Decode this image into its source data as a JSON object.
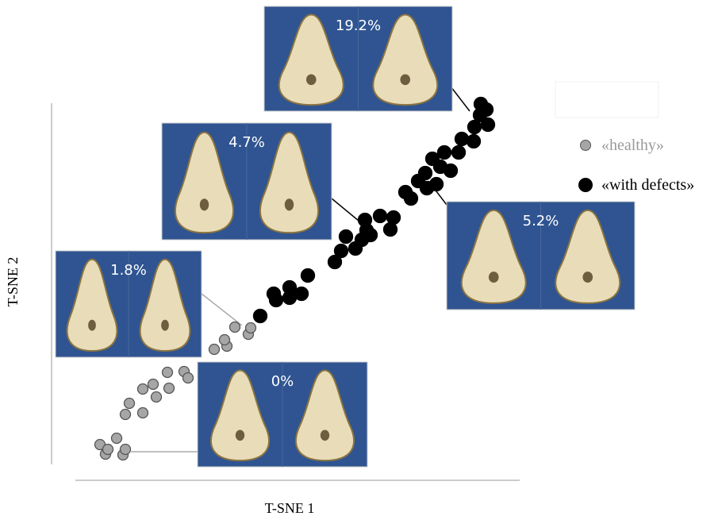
{
  "chart_data": {
    "type": "scatter",
    "x_label": "T-SNE 1",
    "y_label": "T-SNE 2",
    "xlim": [
      0,
      560
    ],
    "ylim": [
      0,
      475
    ],
    "legend": "right",
    "series": [
      {
        "name": "«healthy»",
        "color": "#a6a6a6",
        "x": [
          31,
          38,
          41,
          60,
          52,
          63,
          63,
          68,
          85,
          85,
          98,
          102,
          118,
          116,
          137,
          142,
          175,
          191,
          188,
          201,
          218,
          221
        ],
        "values": [
          45,
          33,
          39,
          32,
          53,
          39,
          83,
          97,
          85,
          115,
          121,
          105,
          116,
          136,
          137,
          129,
          165,
          169,
          177,
          193,
          184,
          192
        ]
      },
      {
        "name": "«with defects»",
        "color": "#000000",
        "x": [
          233,
          250,
          253,
          270,
          270,
          285,
          293,
          327,
          335,
          341,
          353,
          361,
          367,
          365,
          372,
          384,
          397,
          401,
          416,
          423,
          432,
          441,
          443,
          450,
          455,
          460,
          465,
          473,
          483,
          487,
          502,
          503,
          511,
          518,
          520,
          510
        ],
        "values": [
          207,
          235,
          227,
          243,
          230,
          235,
          258,
          275,
          289,
          307,
          292,
          303,
          315,
          328,
          309,
          333,
          316,
          331,
          363,
          355,
          377,
          387,
          368,
          405,
          373,
          395,
          413,
          390,
          413,
          430,
          427,
          445,
          474,
          467,
          448,
          460
        ]
      }
    ],
    "annotations": [
      "19.2%",
      "4.7%",
      "1.8%",
      "0%",
      "5.2%"
    ]
  }
}
